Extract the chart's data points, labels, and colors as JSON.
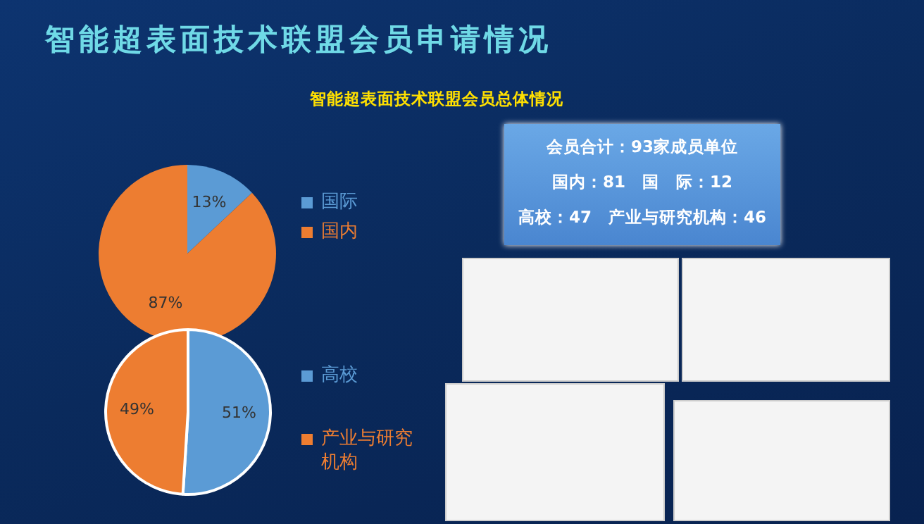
{
  "chart_data": [
    {
      "type": "pie",
      "title": "智能超表面技术联盟会员申请情况",
      "subtitle": "智能超表面技术联盟会员总体情况",
      "categories": [
        "国际",
        "国内"
      ],
      "values": [
        13,
        87
      ],
      "colors": [
        "#5b9bd5",
        "#ed7d31"
      ],
      "value_labels": [
        "13%",
        "87%"
      ],
      "legend": "right"
    },
    {
      "type": "pie",
      "categories": [
        "高校",
        "产业与研究机构"
      ],
      "values": [
        51,
        49
      ],
      "colors": [
        "#5b9bd5",
        "#ed7d31"
      ],
      "value_labels": [
        "51%",
        "49%"
      ],
      "legend": "right"
    },
    {
      "type": "other",
      "annotations": [
        "会员合计：93家成员单位",
        "国内：81　国　际：12",
        "高校：47　产业与研究机构：46"
      ]
    }
  ]
}
